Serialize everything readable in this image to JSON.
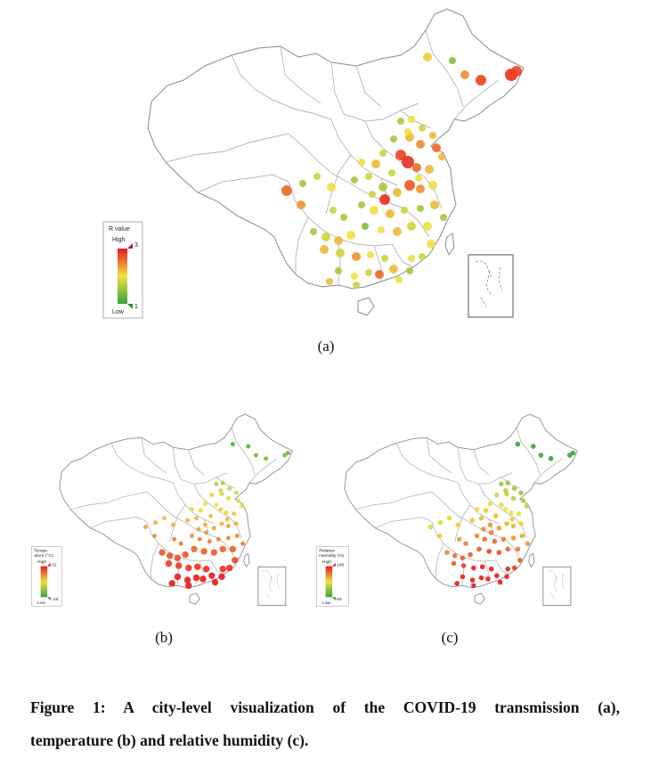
{
  "panels": [
    {
      "id": "a",
      "label": "(a)",
      "legend": {
        "title": "R value",
        "high_text": "High",
        "low_text": "Low",
        "max": "3",
        "min": "1"
      }
    },
    {
      "id": "b",
      "label": "(b)",
      "legend": {
        "title_line1": "Tempe-",
        "title_line2": "ature (°C)",
        "high_text": "High",
        "low_text": "Low",
        "max": "22",
        "min": "-18"
      }
    },
    {
      "id": "c",
      "label": "(c)",
      "legend": {
        "title_line1": "Relative",
        "title_line2": "Humidity (%)",
        "high_text": "High",
        "low_text": "Low",
        "max": "100",
        "min": "60"
      }
    }
  ],
  "caption": {
    "line1": "Figure 1: A city-level visualization of the COVID-19 transmission (a),",
    "line2": "temperature (b) and relative humidity (c)."
  },
  "colors": {
    "high": "#e8191b",
    "mid": "#f0e040",
    "low": "#3aa33a",
    "border": "#8a8a8a"
  }
}
